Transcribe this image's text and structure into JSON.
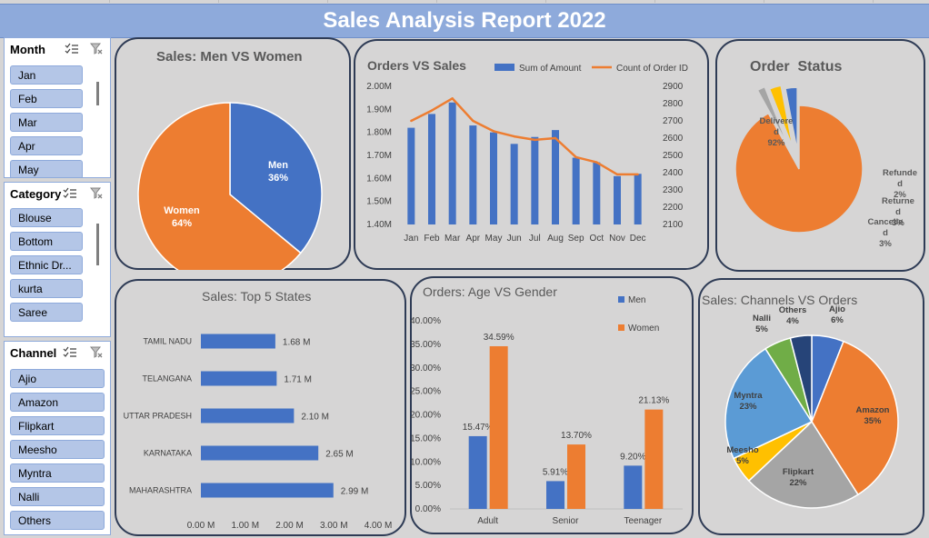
{
  "report_title": "Sales Analysis Report 2022",
  "slicers": {
    "month": {
      "header": "Month",
      "items": [
        "Jan",
        "Feb",
        "Mar",
        "Apr",
        "May"
      ]
    },
    "category": {
      "header": "Category",
      "items": [
        "Blouse",
        "Bottom",
        "Ethnic Dr...",
        "kurta",
        "Saree"
      ]
    },
    "channel": {
      "header": "Channel",
      "items": [
        "Ajio",
        "Amazon",
        "Flipkart",
        "Meesho",
        "Myntra",
        "Nalli",
        "Others"
      ]
    }
  },
  "icons": {
    "multi_select": "multi-select-icon",
    "clear_filter": "clear-filter-icon"
  },
  "colors": {
    "blue": "#4472c4",
    "orange": "#ed7d31",
    "gray": "#a5a5a5",
    "yellow": "#ffc000",
    "light_blue": "#5b9bd5",
    "green": "#70ad47",
    "navy": "#264478",
    "title_bar": "#8eaadb",
    "slicer_item": "#b4c6e7"
  },
  "chart_data": [
    {
      "id": "men_vs_women",
      "type": "pie",
      "title": "Sales: Men VS Women",
      "slices": [
        {
          "label": "Men",
          "value": 36,
          "display": "36%",
          "color": "#4472c4"
        },
        {
          "label": "Women",
          "value": 64,
          "display": "64%",
          "color": "#ed7d31"
        }
      ]
    },
    {
      "id": "orders_vs_sales",
      "type": "bar",
      "title": "Orders VS Sales",
      "categories": [
        "Jan",
        "Feb",
        "Mar",
        "Apr",
        "May",
        "Jun",
        "Jul",
        "Aug",
        "Sep",
        "Oct",
        "Nov",
        "Dec"
      ],
      "series": [
        {
          "name": "Sum of Amount",
          "type": "bar",
          "axis": "left",
          "color": "#4472c4",
          "values": [
            1.82,
            1.88,
            1.93,
            1.83,
            1.8,
            1.75,
            1.78,
            1.81,
            1.69,
            1.67,
            1.61,
            1.62
          ]
        },
        {
          "name": "Count of Order ID",
          "type": "line",
          "axis": "right",
          "color": "#ed7d31",
          "values": [
            2700,
            2760,
            2830,
            2700,
            2640,
            2610,
            2590,
            2600,
            2490,
            2460,
            2390,
            2390
          ]
        }
      ],
      "y_left": {
        "ylim": [
          1.4,
          2.0
        ],
        "ticks": [
          "1.40M",
          "1.50M",
          "1.60M",
          "1.70M",
          "1.80M",
          "1.90M",
          "2.00M"
        ]
      },
      "y_right": {
        "ylim": [
          2100,
          2900
        ],
        "ticks": [
          "2100",
          "2200",
          "2300",
          "2400",
          "2500",
          "2600",
          "2700",
          "2800",
          "2900"
        ]
      },
      "legend": "top"
    },
    {
      "id": "order_status",
      "type": "pie",
      "title": "Order  Status",
      "slices": [
        {
          "label": "Delivered",
          "label_lines": [
            "Delivere",
            "d",
            "92%"
          ],
          "value": 92,
          "color": "#ed7d31"
        },
        {
          "label": "Refunded",
          "label_lines": [
            "Refunde",
            "d",
            "2%"
          ],
          "value": 2,
          "color": "#a5a5a5"
        },
        {
          "label": "Returned",
          "label_lines": [
            "Returne",
            "d",
            "3%"
          ],
          "value": 3,
          "color": "#ffc000"
        },
        {
          "label": "Cancelled",
          "label_lines": [
            "Cancelle",
            "d",
            "3%"
          ],
          "value": 3,
          "color": "#4472c4"
        }
      ]
    },
    {
      "id": "top5_states",
      "type": "bar",
      "orientation": "horizontal",
      "title": "Sales: Top 5 States",
      "categories": [
        "TAMIL NADU",
        "TELANGANA",
        "UTTAR PRADESH",
        "KARNATAKA",
        "MAHARASHTRA"
      ],
      "values": [
        1.68,
        1.71,
        2.1,
        2.65,
        2.99
      ],
      "value_labels": [
        "1.68 M",
        "1.71 M",
        "2.10 M",
        "2.65 M",
        "2.99 M"
      ],
      "xlim": [
        0,
        4
      ],
      "x_ticks": [
        "0.00 M",
        "1.00 M",
        "2.00 M",
        "3.00 M",
        "4.00 M"
      ]
    },
    {
      "id": "age_vs_gender",
      "type": "bar",
      "title": "Orders: Age VS Gender",
      "categories": [
        "Adult",
        "Senior",
        "Teenager"
      ],
      "series": [
        {
          "name": "Men",
          "color": "#4472c4",
          "values": [
            15.47,
            5.91,
            9.2
          ],
          "labels": [
            "15.47%",
            "5.91%",
            "9.20%"
          ]
        },
        {
          "name": "Women",
          "color": "#ed7d31",
          "values": [
            34.59,
            13.7,
            21.13
          ],
          "labels": [
            "34.59%",
            "13.70%",
            "21.13%"
          ]
        }
      ],
      "ylim": [
        0,
        40
      ],
      "y_ticks": [
        "0.00%",
        "5.00%",
        "10.00%",
        "15.00%",
        "20.00%",
        "25.00%",
        "30.00%",
        "35.00%",
        "40.00%"
      ],
      "legend": "top-right"
    },
    {
      "id": "channels_vs_orders",
      "type": "pie",
      "title": "Sales: Channels VS Orders",
      "slices": [
        {
          "label": "Ajio",
          "value": 6,
          "display": "6%",
          "color": "#4472c4"
        },
        {
          "label": "Amazon",
          "value": 35,
          "display": "35%",
          "color": "#ed7d31"
        },
        {
          "label": "Flipkart",
          "value": 22,
          "display": "22%",
          "color": "#a5a5a5"
        },
        {
          "label": "Meesho",
          "value": 5,
          "display": "5%",
          "color": "#ffc000"
        },
        {
          "label": "Myntra",
          "value": 23,
          "display": "23%",
          "color": "#5b9bd5"
        },
        {
          "label": "Nalli",
          "value": 5,
          "display": "5%",
          "color": "#70ad47"
        },
        {
          "label": "Others",
          "value": 4,
          "display": "4%",
          "color": "#264478"
        }
      ]
    }
  ]
}
